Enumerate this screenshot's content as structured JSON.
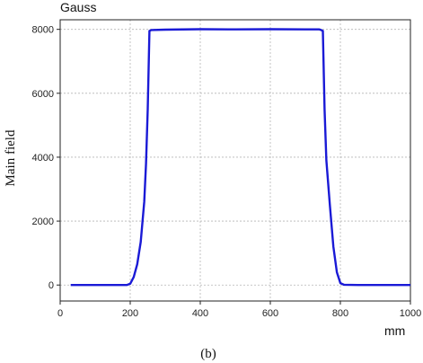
{
  "chart_data": {
    "type": "line",
    "title": "",
    "xlabel": "mm",
    "ylabel": "Main field",
    "y_unit_label": "Gauss",
    "caption": "(b)",
    "xlim": [
      0,
      1000
    ],
    "ylim": [
      -500,
      8300
    ],
    "x_ticks": [
      0,
      200,
      400,
      600,
      800,
      1000
    ],
    "y_ticks": [
      0,
      2000,
      4000,
      6000,
      8000
    ],
    "grid": true,
    "line_color": "#1a1ad6",
    "series": [
      {
        "x": [
          30,
          100,
          190,
          200,
          210,
          220,
          230,
          240,
          245,
          250,
          255,
          260,
          300,
          400,
          500,
          600,
          700,
          740,
          745,
          750,
          755,
          760,
          770,
          780,
          790,
          800,
          810,
          850,
          900,
          1000
        ],
        "y": [
          0,
          0,
          0,
          40,
          250,
          650,
          1350,
          2600,
          3800,
          5500,
          7950,
          7980,
          7990,
          8005,
          8000,
          8005,
          8000,
          8000,
          7980,
          7950,
          5500,
          3900,
          2500,
          1200,
          400,
          60,
          10,
          0,
          0,
          0
        ]
      }
    ]
  }
}
